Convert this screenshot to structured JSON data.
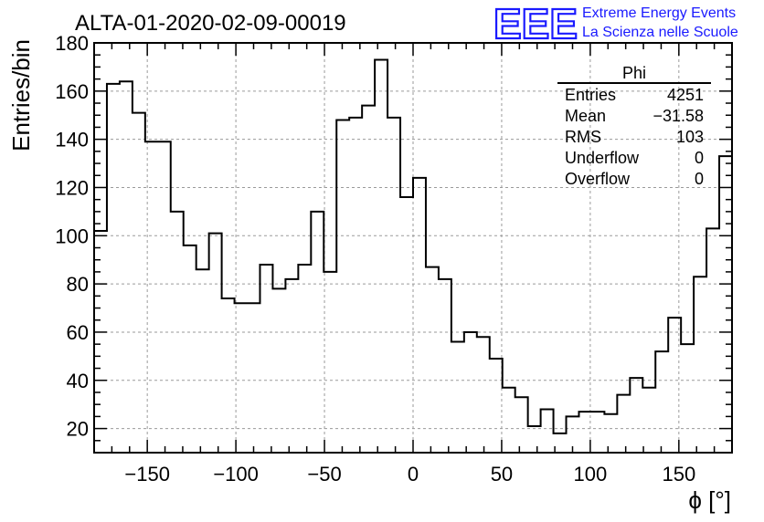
{
  "chart_data": {
    "type": "histogram",
    "title": "ALTA-01-2020-02-09-00019",
    "xlabel": "ϕ [°]",
    "ylabel": "Entries/bin",
    "xlim": [
      -180,
      180
    ],
    "ylim": [
      10,
      180
    ],
    "grid": true,
    "bin_width": 7.2,
    "x_ticks": [
      "−150",
      "−100",
      "−50",
      "0",
      "50",
      "100",
      "150"
    ],
    "x_tick_values": [
      -150,
      -100,
      -50,
      0,
      50,
      100,
      150
    ],
    "y_ticks": [
      "20",
      "40",
      "60",
      "80",
      "100",
      "120",
      "140",
      "160",
      "180"
    ],
    "y_tick_values": [
      20,
      40,
      60,
      80,
      100,
      120,
      140,
      160,
      180
    ],
    "values": [
      102,
      163,
      164,
      151,
      139,
      139,
      110,
      96,
      86,
      101,
      74,
      72,
      72,
      88,
      78,
      82,
      88,
      110,
      85,
      148,
      149,
      154,
      173,
      149,
      116,
      124,
      87,
      82,
      56,
      60,
      58,
      49,
      37,
      33,
      21,
      28,
      18,
      25,
      27,
      27,
      26,
      34,
      41,
      37,
      52,
      66,
      55,
      83,
      103,
      133
    ]
  },
  "stats_box": {
    "name": "Phi",
    "rows": [
      {
        "label": "Entries",
        "value": "4251"
      },
      {
        "label": "Mean",
        "value": "−31.58"
      },
      {
        "label": "RMS",
        "value": "103"
      },
      {
        "label": "Underflow",
        "value": "0"
      },
      {
        "label": "Overflow",
        "value": "0"
      }
    ]
  },
  "logo": {
    "mark": "EEE",
    "line1": "Extreme Energy Events",
    "line2": "La Scienza nelle Scuole"
  }
}
